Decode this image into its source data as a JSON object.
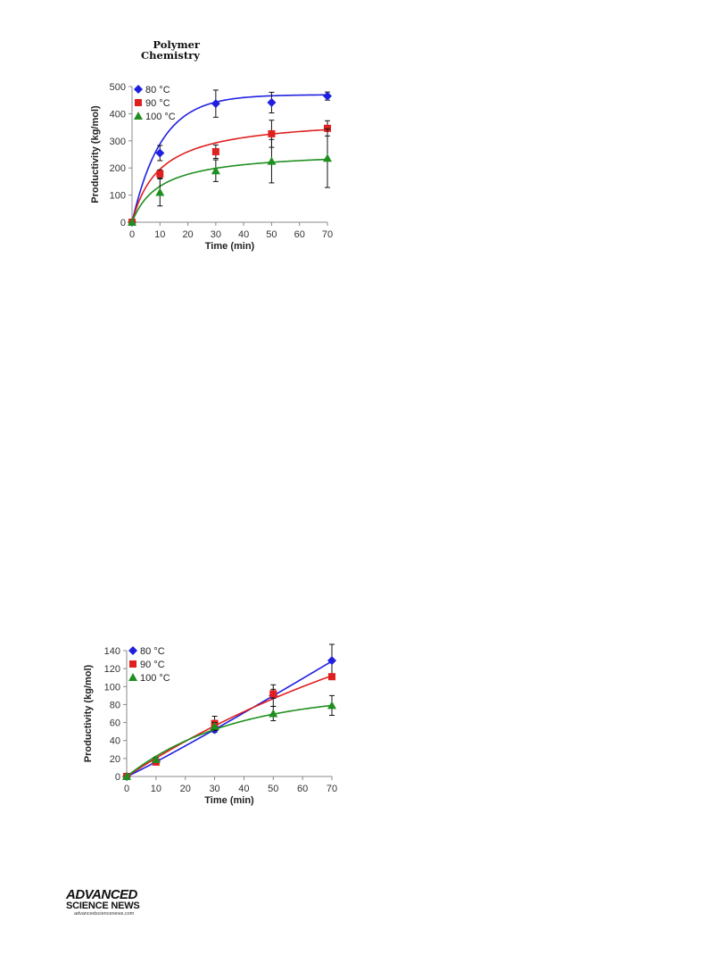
{
  "header": {
    "journal_line1": "Polymer",
    "journal_line2": "Chemistry"
  },
  "footer": {
    "publisher_line1": "ADVANCED",
    "publisher_line2": "SCIENCE NEWS",
    "publisher_url": "advancedsciencenews.com"
  },
  "chart_data": [
    {
      "type": "scatter",
      "title": "",
      "xlabel": "Time (min)",
      "ylabel": "Productivity (kg/mol)",
      "xlim": [
        0,
        70
      ],
      "ylim": [
        0,
        500
      ],
      "xticks": [
        0,
        10,
        20,
        30,
        40,
        50,
        60,
        70
      ],
      "yticks": [
        0,
        100,
        200,
        300,
        400,
        500
      ],
      "grid": false,
      "legend_position": "top-left",
      "fit_curves": true,
      "series": [
        {
          "name": "80 °C",
          "color": "#1f1fe0",
          "marker": "diamond",
          "x": [
            0,
            10,
            30,
            50,
            70
          ],
          "y": [
            0,
            255,
            437,
            441,
            465
          ],
          "err": [
            0,
            28,
            50,
            38,
            15
          ],
          "fit": {
            "model": "exponential",
            "ymax": 470,
            "k": 0.095
          }
        },
        {
          "name": "90 °C",
          "color": "#e01f1f",
          "marker": "square",
          "x": [
            0,
            10,
            30,
            50,
            70
          ],
          "y": [
            0,
            178,
            260,
            326,
            346
          ],
          "err": [
            0,
            15,
            25,
            50,
            28
          ],
          "fit": {
            "model": "saturation",
            "ymax": 390,
            "k": 10
          }
        },
        {
          "name": "100 °C",
          "color": "#1f8f1f",
          "marker": "triangle",
          "x": [
            0,
            10,
            30,
            50,
            70
          ],
          "y": [
            0,
            110,
            190,
            225,
            236
          ],
          "err": [
            0,
            50,
            40,
            80,
            108
          ],
          "fit": {
            "model": "saturation",
            "ymax": 265,
            "k": 10
          }
        }
      ]
    },
    {
      "type": "scatter",
      "title": "",
      "xlabel": "Time (min)",
      "ylabel": "Productivity (kg/mol)",
      "xlim": [
        0,
        70
      ],
      "ylim": [
        0,
        140
      ],
      "xticks": [
        0,
        10,
        20,
        30,
        40,
        50,
        60,
        70
      ],
      "yticks": [
        0,
        20,
        40,
        60,
        80,
        100,
        120,
        140
      ],
      "grid": false,
      "legend_position": "top-left",
      "fit_curves": true,
      "series": [
        {
          "name": "80 °C",
          "color": "#1f1fe0",
          "marker": "diamond",
          "x": [
            0,
            10,
            30,
            50,
            70
          ],
          "y": [
            0,
            17,
            52,
            90,
            129
          ],
          "err": [
            0,
            2,
            3,
            12,
            18
          ],
          "fit": {
            "model": "power",
            "a": 1.42,
            "b": 1.06
          }
        },
        {
          "name": "90 °C",
          "color": "#e01f1f",
          "marker": "square",
          "x": [
            0,
            10,
            30,
            50,
            70
          ],
          "y": [
            0,
            16,
            59,
            92,
            111
          ],
          "err": [
            0,
            2,
            8,
            5,
            3
          ],
          "fit": {
            "model": "exponential",
            "ymax": 250,
            "k": 0.0085
          }
        },
        {
          "name": "100 °C",
          "color": "#1f8f1f",
          "marker": "triangle",
          "x": [
            0,
            10,
            30,
            50,
            70
          ],
          "y": [
            0,
            19,
            56,
            70,
            79
          ],
          "err": [
            0,
            2,
            4,
            8,
            11
          ],
          "fit": {
            "model": "exponential",
            "ymax": 92,
            "k": 0.028
          }
        }
      ]
    }
  ]
}
